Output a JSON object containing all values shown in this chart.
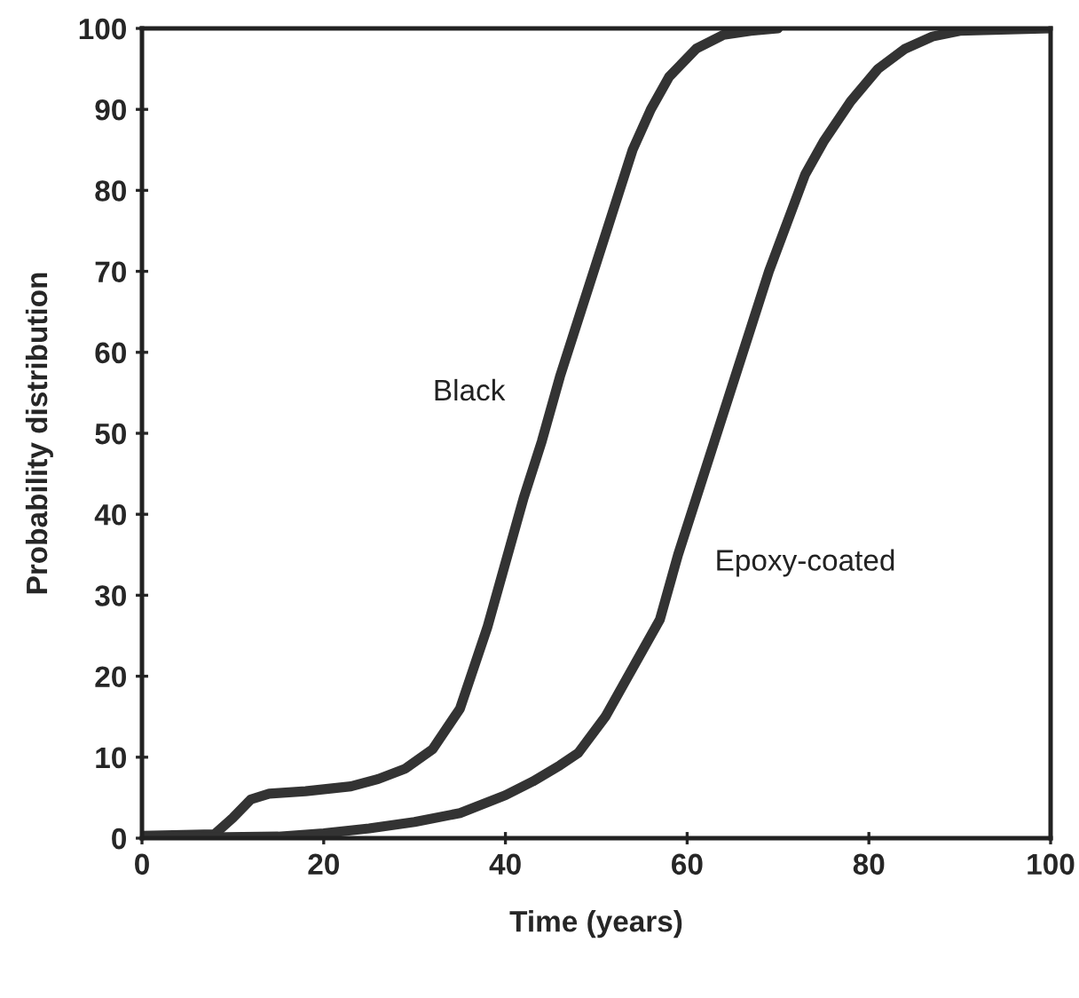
{
  "chart_data": {
    "type": "line",
    "xlabel": "Time (years)",
    "ylabel": "Probability distribution",
    "xlim": [
      0,
      100
    ],
    "ylim": [
      0,
      100
    ],
    "xticks": [
      0,
      20,
      40,
      60,
      80,
      100
    ],
    "yticks": [
      0,
      10,
      20,
      30,
      40,
      50,
      60,
      70,
      80,
      90,
      100
    ],
    "grid": false,
    "legend": false,
    "marker": "none",
    "line_style": "solid",
    "series": [
      {
        "name": "Black",
        "color": "#333333",
        "x": [
          0,
          8,
          10,
          12,
          14,
          18,
          23,
          26,
          29,
          32,
          35,
          38,
          40,
          42,
          44,
          46,
          48,
          50,
          52,
          54,
          56,
          58,
          61,
          64,
          67,
          70
        ],
        "values": [
          0.3,
          0.5,
          2.5,
          4.8,
          5.5,
          5.8,
          6.4,
          7.3,
          8.6,
          11,
          16,
          26,
          34,
          42,
          49,
          57,
          64,
          71,
          78,
          85,
          90,
          94,
          97.5,
          99.2,
          99.7,
          100
        ]
      },
      {
        "name": "Epoxy-coated",
        "color": "#333333",
        "x": [
          0,
          15,
          20,
          25,
          30,
          35,
          40,
          43,
          46,
          48,
          51,
          54,
          57,
          59,
          61,
          63,
          65,
          67,
          69,
          71,
          73,
          75,
          78,
          81,
          84,
          87,
          90,
          100
        ],
        "values": [
          0,
          0.2,
          0.6,
          1.2,
          2,
          3.1,
          5.3,
          7,
          9,
          10.5,
          15,
          21,
          27,
          35,
          42,
          49,
          56,
          63,
          70,
          76,
          82,
          86,
          91,
          95,
          97.5,
          99,
          99.7,
          100
        ]
      }
    ]
  }
}
